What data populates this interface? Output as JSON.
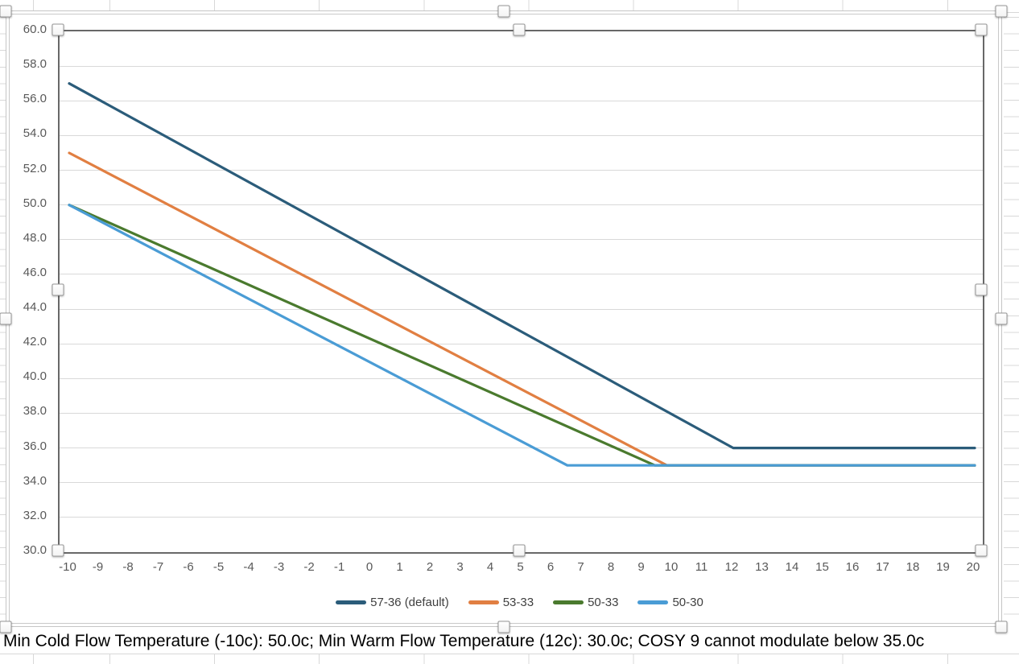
{
  "caption": "Min Cold Flow Temperature (-10c): 50.0c; Min Warm Flow Temperature (12c): 30.0c; COSY 9 cannot modulate below 35.0c",
  "selection": {
    "chart_selected": true,
    "plot_area_selected": true
  },
  "chart_data": {
    "type": "line",
    "title": "",
    "xlabel": "",
    "ylabel": "",
    "grid": "horizontal",
    "legend_position": "bottom",
    "x_axis": {
      "min": -10,
      "max": 20,
      "tick_step": 1,
      "tick_labels": [
        "-10",
        "-9",
        "-8",
        "-7",
        "-6",
        "-5",
        "-4",
        "-3",
        "-2",
        "-1",
        "0",
        "1",
        "2",
        "3",
        "4",
        "5",
        "6",
        "7",
        "8",
        "9",
        "10",
        "11",
        "12",
        "13",
        "14",
        "15",
        "16",
        "17",
        "18",
        "19",
        "20"
      ]
    },
    "y_axis": {
      "min": 30,
      "max": 60,
      "tick_step": 2,
      "tick_labels_top_to_bottom": [
        "60.0",
        "58.0",
        "56.0",
        "54.0",
        "52.0",
        "50.0",
        "48.0",
        "46.0",
        "44.0",
        "42.0",
        "40.0",
        "38.0",
        "36.0",
        "34.0",
        "32.0",
        "30.0"
      ]
    },
    "series": [
      {
        "name": "57-36 (default)",
        "color": "#2B5C7A",
        "points": [
          [
            -10,
            57
          ],
          [
            12,
            36
          ],
          [
            20,
            36
          ]
        ]
      },
      {
        "name": "53-33",
        "color": "#E17F42",
        "points": [
          [
            -10,
            53
          ],
          [
            9.8,
            35
          ],
          [
            20,
            35
          ]
        ]
      },
      {
        "name": "50-33",
        "color": "#4A7A2E",
        "points": [
          [
            -10,
            50
          ],
          [
            9.4,
            35
          ],
          [
            20,
            35
          ]
        ]
      },
      {
        "name": "50-30",
        "color": "#4A9CD5",
        "points": [
          [
            -10,
            50
          ],
          [
            6.5,
            35
          ],
          [
            20,
            35
          ]
        ]
      }
    ]
  }
}
